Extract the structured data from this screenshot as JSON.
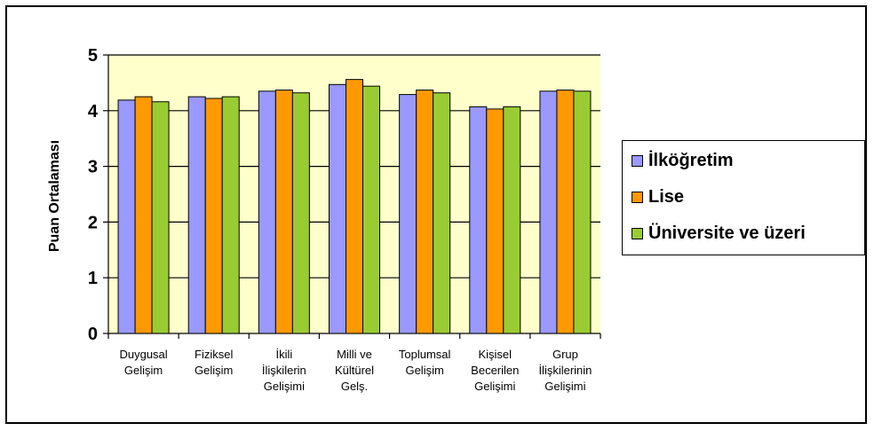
{
  "chart_data": {
    "type": "bar",
    "ylabel": "Puan Ortalaması",
    "ylim": [
      0,
      5
    ],
    "yticks": [
      "0",
      "1",
      "2",
      "3",
      "4",
      "5"
    ],
    "categories": [
      [
        "Duygusal",
        "Gelişim"
      ],
      [
        "Fiziksel",
        "Gelişim"
      ],
      [
        "İkili",
        "İlişkilerin",
        "Gelişimi"
      ],
      [
        "Milli ve",
        "Kültürel",
        "Gelş."
      ],
      [
        "Toplumsal",
        "Gelişim"
      ],
      [
        "Kişisel",
        "Becerilen",
        "Gelişimi"
      ],
      [
        "Grup",
        "İlişkilerinin",
        "Gelişimi"
      ]
    ],
    "series": [
      {
        "name": "İlköğretim",
        "color": "#9999FF",
        "values": [
          4.19,
          4.25,
          4.35,
          4.47,
          4.29,
          4.07,
          4.35
        ]
      },
      {
        "name": "Lise",
        "color": "#FF9900",
        "values": [
          4.25,
          4.22,
          4.37,
          4.56,
          4.37,
          4.03,
          4.37
        ]
      },
      {
        "name": "Üniversite ve üzeri",
        "color": "#99CC33",
        "values": [
          4.16,
          4.25,
          4.32,
          4.44,
          4.32,
          4.07,
          4.35
        ]
      }
    ],
    "grid": true,
    "legend_position": "right",
    "plot_background": "#FFFFCC"
  }
}
